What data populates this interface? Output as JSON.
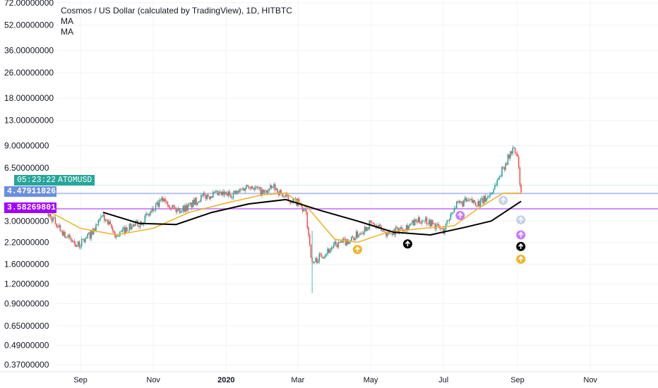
{
  "legend": {
    "title": "Cosmos / US Dollar (calculated by TradingView), 1D, HITBTC",
    "indicators": [
      "MA",
      "MA"
    ]
  },
  "colors": {
    "candle_up": "#26a69a",
    "candle_down": "#ef5350",
    "ma_fast": "#f0b429",
    "ma_slow": "#000000",
    "hline_blue": "#a8b9f0",
    "hline_purple": "#c77dff",
    "tag_blue": "#6b8fe0",
    "tag_purple": "#a000ff",
    "tag_teal": "#26a69a",
    "grid": "#f0f3fa"
  },
  "tags": {
    "countdown": "05:23:22",
    "symbol": "ATOMUSD",
    "price_blue": "4.47911826",
    "price_purple": "3.58269801"
  },
  "chart_data": {
    "type": "candlestick",
    "title": "Cosmos / US Dollar (calculated by TradingView), 1D, HITBTC",
    "y_scale": "log",
    "y_ticks": [
      "72.00000000",
      "52.00000000",
      "36.00000000",
      "26.00000000",
      "18.00000000",
      "13.00000000",
      "9.00000000",
      "6.50000000",
      "4.47911826",
      "3.58269801",
      "3.00000000",
      "2.20000000",
      "1.60000000",
      "1.20000000",
      "0.90000000",
      "0.65000000",
      "0.49000000",
      "0.37000000"
    ],
    "x_ticks": [
      {
        "label": "Sep",
        "bold": false
      },
      {
        "label": "Nov",
        "bold": false
      },
      {
        "label": "2020",
        "bold": true
      },
      {
        "label": "Mar",
        "bold": false
      },
      {
        "label": "May",
        "bold": false
      },
      {
        "label": "Jul",
        "bold": false
      },
      {
        "label": "Sep",
        "bold": false
      },
      {
        "label": "Nov",
        "bold": false
      }
    ],
    "horizontal_lines": [
      {
        "value": 4.47911826,
        "color": "#a8b9f0"
      },
      {
        "value": 3.58269801,
        "color": "#c77dff"
      },
      {
        "value": 5.05,
        "color": "#cdebe7"
      }
    ],
    "price_path": [
      [
        "2019-08-01",
        3.6
      ],
      [
        "2019-08-10",
        3.0
      ],
      [
        "2019-08-20",
        2.4
      ],
      [
        "2019-08-30",
        2.1
      ],
      [
        "2019-09-10",
        2.5
      ],
      [
        "2019-09-20",
        3.2
      ],
      [
        "2019-10-01",
        2.4
      ],
      [
        "2019-10-10",
        2.7
      ],
      [
        "2019-10-20",
        2.9
      ],
      [
        "2019-11-01",
        3.5
      ],
      [
        "2019-11-10",
        4.2
      ],
      [
        "2019-11-20",
        3.5
      ],
      [
        "2019-12-01",
        3.7
      ],
      [
        "2019-12-10",
        4.2
      ],
      [
        "2019-12-20",
        4.4
      ],
      [
        "2020-01-01",
        4.4
      ],
      [
        "2020-01-10",
        4.5
      ],
      [
        "2020-01-20",
        5.1
      ],
      [
        "2020-02-01",
        4.5
      ],
      [
        "2020-02-10",
        4.9
      ],
      [
        "2020-02-20",
        4.2
      ],
      [
        "2020-03-01",
        3.9
      ],
      [
        "2020-03-08",
        3.3
      ],
      [
        "2020-03-13",
        1.6
      ],
      [
        "2020-03-20",
        1.8
      ],
      [
        "2020-04-01",
        2.1
      ],
      [
        "2020-04-15",
        2.3
      ],
      [
        "2020-05-01",
        2.9
      ],
      [
        "2020-05-15",
        2.5
      ],
      [
        "2020-06-01",
        2.8
      ],
      [
        "2020-06-15",
        3.1
      ],
      [
        "2020-07-01",
        2.6
      ],
      [
        "2020-07-10",
        3.7
      ],
      [
        "2020-07-20",
        4.0
      ],
      [
        "2020-08-01",
        3.9
      ],
      [
        "2020-08-10",
        4.5
      ],
      [
        "2020-08-20",
        6.5
      ],
      [
        "2020-08-28",
        8.6
      ],
      [
        "2020-09-01",
        7.6
      ],
      [
        "2020-09-04",
        4.3
      ]
    ],
    "ma_fast": [
      [
        "2019-08-01",
        3.6
      ],
      [
        "2019-09-01",
        2.7
      ],
      [
        "2019-10-01",
        2.45
      ],
      [
        "2019-11-01",
        2.7
      ],
      [
        "2019-12-01",
        3.4
      ],
      [
        "2020-01-01",
        3.9
      ],
      [
        "2020-02-01",
        4.4
      ],
      [
        "2020-02-20",
        4.5
      ],
      [
        "2020-03-10",
        3.6
      ],
      [
        "2020-04-01",
        2.3
      ],
      [
        "2020-04-20",
        2.2
      ],
      [
        "2020-05-15",
        2.55
      ],
      [
        "2020-06-15",
        2.7
      ],
      [
        "2020-07-10",
        2.8
      ],
      [
        "2020-07-30",
        3.6
      ],
      [
        "2020-08-20",
        4.5
      ],
      [
        "2020-09-04",
        4.5
      ]
    ],
    "ma_slow": [
      [
        "2019-09-20",
        3.4
      ],
      [
        "2019-10-20",
        2.9
      ],
      [
        "2019-11-20",
        2.85
      ],
      [
        "2019-12-20",
        3.4
      ],
      [
        "2020-01-20",
        3.85
      ],
      [
        "2020-02-20",
        4.1
      ],
      [
        "2020-03-20",
        3.5
      ],
      [
        "2020-04-20",
        3.0
      ],
      [
        "2020-05-20",
        2.55
      ],
      [
        "2020-06-20",
        2.45
      ],
      [
        "2020-07-20",
        2.75
      ],
      [
        "2020-08-10",
        3.0
      ],
      [
        "2020-09-04",
        4.0
      ]
    ],
    "signals": [
      {
        "date": "2020-04-20",
        "value": 1.98,
        "color": "#f0b429"
      },
      {
        "date": "2020-06-01",
        "value": 2.15,
        "color": "#000000"
      },
      {
        "date": "2020-07-15",
        "value": 3.25,
        "color": "#c77dff"
      },
      {
        "date": "2020-08-20",
        "value": 4.05,
        "color": "#c5d3ea"
      },
      {
        "date": "2020-09-02",
        "value": 3.05,
        "color": "#c5d3ea"
      },
      {
        "date": "2020-09-02",
        "value": 2.45,
        "color": "#c77dff"
      },
      {
        "date": "2020-09-02",
        "value": 2.07,
        "color": "#000000"
      },
      {
        "date": "2020-09-02",
        "value": 1.72,
        "color": "#f0b429"
      }
    ],
    "legend": "top-left",
    "grid": true
  }
}
